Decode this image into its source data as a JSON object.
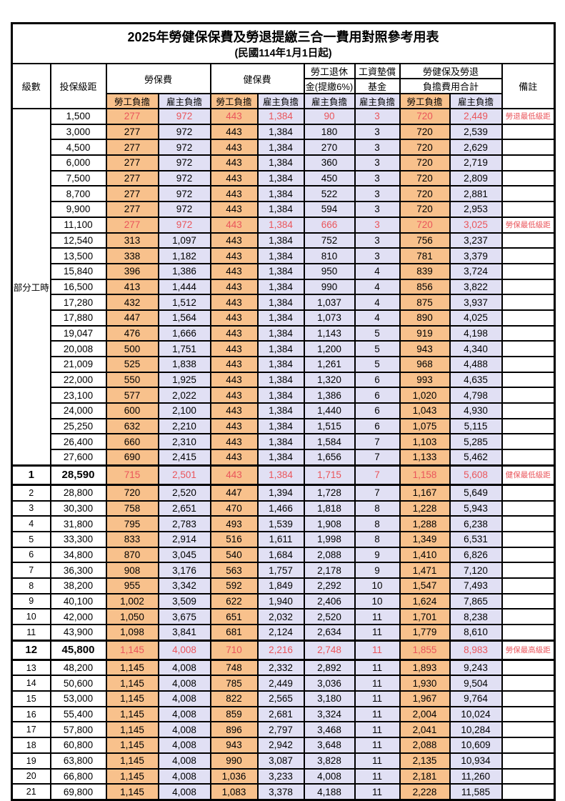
{
  "title": "2025年勞健保保費及勞退提繳三合一費用對照參考用表",
  "subtitle": "(民國114年1月1日起)",
  "colors": {
    "employee_bg": "#F8C18C",
    "employer_bg": "#E1E0F4",
    "highlight_text": "#EA555B"
  },
  "header": {
    "grade": "級數",
    "bracket": "投保級距",
    "labor_ins": "勞保費",
    "health_ins": "健保費",
    "pension_line1": "勞工退休",
    "pension_line2": "金(提繳6%)",
    "wage_fund_line1": "工資墊償",
    "wage_fund_line2": "基金",
    "total_line1": "勞健保及勞退",
    "total_line2": "負擔費用合計",
    "note": "備註",
    "employee": "勞工負擔",
    "employer": "雇主負擔"
  },
  "rows": [
    {
      "grade": "部分工時",
      "grade_rowspan": 23,
      "bracket": "1,500",
      "values": [
        "277",
        "972",
        "443",
        "1,384",
        "90",
        "3",
        "720",
        "2,449"
      ],
      "note": "勞退最低級距",
      "highlight": true
    },
    {
      "grade": null,
      "bracket": "3,000",
      "values": [
        "277",
        "972",
        "443",
        "1,384",
        "180",
        "3",
        "720",
        "2,539"
      ],
      "note": ""
    },
    {
      "grade": null,
      "bracket": "4,500",
      "values": [
        "277",
        "972",
        "443",
        "1,384",
        "270",
        "3",
        "720",
        "2,629"
      ],
      "note": ""
    },
    {
      "grade": null,
      "bracket": "6,000",
      "values": [
        "277",
        "972",
        "443",
        "1,384",
        "360",
        "3",
        "720",
        "2,719"
      ],
      "note": ""
    },
    {
      "grade": null,
      "bracket": "7,500",
      "values": [
        "277",
        "972",
        "443",
        "1,384",
        "450",
        "3",
        "720",
        "2,809"
      ],
      "note": ""
    },
    {
      "grade": null,
      "bracket": "8,700",
      "values": [
        "277",
        "972",
        "443",
        "1,384",
        "522",
        "3",
        "720",
        "2,881"
      ],
      "note": ""
    },
    {
      "grade": null,
      "bracket": "9,900",
      "values": [
        "277",
        "972",
        "443",
        "1,384",
        "594",
        "3",
        "720",
        "2,953"
      ],
      "note": ""
    },
    {
      "grade": null,
      "bracket": "11,100",
      "values": [
        "277",
        "972",
        "443",
        "1,384",
        "666",
        "3",
        "720",
        "3,025"
      ],
      "note": "勞保最低級距",
      "highlight": true
    },
    {
      "grade": null,
      "bracket": "12,540",
      "values": [
        "313",
        "1,097",
        "443",
        "1,384",
        "752",
        "3",
        "756",
        "3,237"
      ],
      "note": ""
    },
    {
      "grade": null,
      "bracket": "13,500",
      "values": [
        "338",
        "1,182",
        "443",
        "1,384",
        "810",
        "3",
        "781",
        "3,379"
      ],
      "note": ""
    },
    {
      "grade": null,
      "bracket": "15,840",
      "values": [
        "396",
        "1,386",
        "443",
        "1,384",
        "950",
        "4",
        "839",
        "3,724"
      ],
      "note": ""
    },
    {
      "grade": null,
      "bracket": "16,500",
      "values": [
        "413",
        "1,444",
        "443",
        "1,384",
        "990",
        "4",
        "856",
        "3,822"
      ],
      "note": ""
    },
    {
      "grade": null,
      "bracket": "17,280",
      "values": [
        "432",
        "1,512",
        "443",
        "1,384",
        "1,037",
        "4",
        "875",
        "3,937"
      ],
      "note": ""
    },
    {
      "grade": null,
      "bracket": "17,880",
      "values": [
        "447",
        "1,564",
        "443",
        "1,384",
        "1,073",
        "4",
        "890",
        "4,025"
      ],
      "note": ""
    },
    {
      "grade": null,
      "bracket": "19,047",
      "values": [
        "476",
        "1,666",
        "443",
        "1,384",
        "1,143",
        "5",
        "919",
        "4,198"
      ],
      "note": ""
    },
    {
      "grade": null,
      "bracket": "20,008",
      "values": [
        "500",
        "1,751",
        "443",
        "1,384",
        "1,200",
        "5",
        "943",
        "4,340"
      ],
      "note": ""
    },
    {
      "grade": null,
      "bracket": "21,009",
      "values": [
        "525",
        "1,838",
        "443",
        "1,384",
        "1,261",
        "5",
        "968",
        "4,488"
      ],
      "note": ""
    },
    {
      "grade": null,
      "bracket": "22,000",
      "values": [
        "550",
        "1,925",
        "443",
        "1,384",
        "1,320",
        "6",
        "993",
        "4,635"
      ],
      "note": ""
    },
    {
      "grade": null,
      "bracket": "23,100",
      "values": [
        "577",
        "2,022",
        "443",
        "1,384",
        "1,386",
        "6",
        "1,020",
        "4,798"
      ],
      "note": ""
    },
    {
      "grade": null,
      "bracket": "24,000",
      "values": [
        "600",
        "2,100",
        "443",
        "1,384",
        "1,440",
        "6",
        "1,043",
        "4,930"
      ],
      "note": ""
    },
    {
      "grade": null,
      "bracket": "25,250",
      "values": [
        "632",
        "2,210",
        "443",
        "1,384",
        "1,515",
        "6",
        "1,075",
        "5,115"
      ],
      "note": ""
    },
    {
      "grade": null,
      "bracket": "26,400",
      "values": [
        "660",
        "2,310",
        "443",
        "1,384",
        "1,584",
        "7",
        "1,103",
        "5,285"
      ],
      "note": ""
    },
    {
      "grade": null,
      "bracket": "27,600",
      "values": [
        "690",
        "2,415",
        "443",
        "1,384",
        "1,656",
        "7",
        "1,133",
        "5,462"
      ],
      "note": ""
    },
    {
      "grade": "1",
      "bracket": "28,590",
      "values": [
        "715",
        "2,501",
        "443",
        "1,384",
        "1,715",
        "7",
        "1,158",
        "5,608"
      ],
      "note": "健保最低級距",
      "highlight": true,
      "emph": true
    },
    {
      "grade": "2",
      "bracket": "28,800",
      "values": [
        "720",
        "2,520",
        "447",
        "1,394",
        "1,728",
        "7",
        "1,167",
        "5,649"
      ],
      "note": ""
    },
    {
      "grade": "3",
      "bracket": "30,300",
      "values": [
        "758",
        "2,651",
        "470",
        "1,466",
        "1,818",
        "8",
        "1,228",
        "5,943"
      ],
      "note": ""
    },
    {
      "grade": "4",
      "bracket": "31,800",
      "values": [
        "795",
        "2,783",
        "493",
        "1,539",
        "1,908",
        "8",
        "1,288",
        "6,238"
      ],
      "note": ""
    },
    {
      "grade": "5",
      "bracket": "33,300",
      "values": [
        "833",
        "2,914",
        "516",
        "1,611",
        "1,998",
        "8",
        "1,349",
        "6,531"
      ],
      "note": ""
    },
    {
      "grade": "6",
      "bracket": "34,800",
      "values": [
        "870",
        "3,045",
        "540",
        "1,684",
        "2,088",
        "9",
        "1,410",
        "6,826"
      ],
      "note": ""
    },
    {
      "grade": "7",
      "bracket": "36,300",
      "values": [
        "908",
        "3,176",
        "563",
        "1,757",
        "2,178",
        "9",
        "1,471",
        "7,120"
      ],
      "note": ""
    },
    {
      "grade": "8",
      "bracket": "38,200",
      "values": [
        "955",
        "3,342",
        "592",
        "1,849",
        "2,292",
        "10",
        "1,547",
        "7,493"
      ],
      "note": ""
    },
    {
      "grade": "9",
      "bracket": "40,100",
      "values": [
        "1,002",
        "3,509",
        "622",
        "1,940",
        "2,406",
        "10",
        "1,624",
        "7,865"
      ],
      "note": ""
    },
    {
      "grade": "10",
      "bracket": "42,000",
      "values": [
        "1,050",
        "3,675",
        "651",
        "2,032",
        "2,520",
        "11",
        "1,701",
        "8,238"
      ],
      "note": ""
    },
    {
      "grade": "11",
      "bracket": "43,900",
      "values": [
        "1,098",
        "3,841",
        "681",
        "2,124",
        "2,634",
        "11",
        "1,779",
        "8,610"
      ],
      "note": ""
    },
    {
      "grade": "12",
      "bracket": "45,800",
      "values": [
        "1,145",
        "4,008",
        "710",
        "2,216",
        "2,748",
        "11",
        "1,855",
        "8,983"
      ],
      "note": "勞保最高級距",
      "highlight": true,
      "emph": true
    },
    {
      "grade": "13",
      "bracket": "48,200",
      "values": [
        "1,145",
        "4,008",
        "748",
        "2,332",
        "2,892",
        "11",
        "1,893",
        "9,243"
      ],
      "note": ""
    },
    {
      "grade": "14",
      "bracket": "50,600",
      "values": [
        "1,145",
        "4,008",
        "785",
        "2,449",
        "3,036",
        "11",
        "1,930",
        "9,504"
      ],
      "note": ""
    },
    {
      "grade": "15",
      "bracket": "53,000",
      "values": [
        "1,145",
        "4,008",
        "822",
        "2,565",
        "3,180",
        "11",
        "1,967",
        "9,764"
      ],
      "note": ""
    },
    {
      "grade": "16",
      "bracket": "55,400",
      "values": [
        "1,145",
        "4,008",
        "859",
        "2,681",
        "3,324",
        "11",
        "2,004",
        "10,024"
      ],
      "note": ""
    },
    {
      "grade": "17",
      "bracket": "57,800",
      "values": [
        "1,145",
        "4,008",
        "896",
        "2,797",
        "3,468",
        "11",
        "2,041",
        "10,284"
      ],
      "note": ""
    },
    {
      "grade": "18",
      "bracket": "60,800",
      "values": [
        "1,145",
        "4,008",
        "943",
        "2,942",
        "3,648",
        "11",
        "2,088",
        "10,609"
      ],
      "note": ""
    },
    {
      "grade": "19",
      "bracket": "63,800",
      "values": [
        "1,145",
        "4,008",
        "990",
        "3,087",
        "3,828",
        "11",
        "2,135",
        "10,934"
      ],
      "note": ""
    },
    {
      "grade": "20",
      "bracket": "66,800",
      "values": [
        "1,145",
        "4,008",
        "1,036",
        "3,233",
        "4,008",
        "11",
        "2,181",
        "11,260"
      ],
      "note": ""
    },
    {
      "grade": "21",
      "bracket": "69,800",
      "values": [
        "1,145",
        "4,008",
        "1,083",
        "3,378",
        "4,188",
        "11",
        "2,228",
        "11,585"
      ],
      "note": ""
    }
  ],
  "value_columns": [
    {
      "key": "labor_employee",
      "type": "employee"
    },
    {
      "key": "labor_employer",
      "type": "employer"
    },
    {
      "key": "health_employee",
      "type": "employee"
    },
    {
      "key": "health_employer",
      "type": "employer"
    },
    {
      "key": "pension_employer",
      "type": "employer"
    },
    {
      "key": "wage_fund_employer",
      "type": "employer"
    },
    {
      "key": "total_employee",
      "type": "employee"
    },
    {
      "key": "total_employer",
      "type": "employer"
    }
  ]
}
